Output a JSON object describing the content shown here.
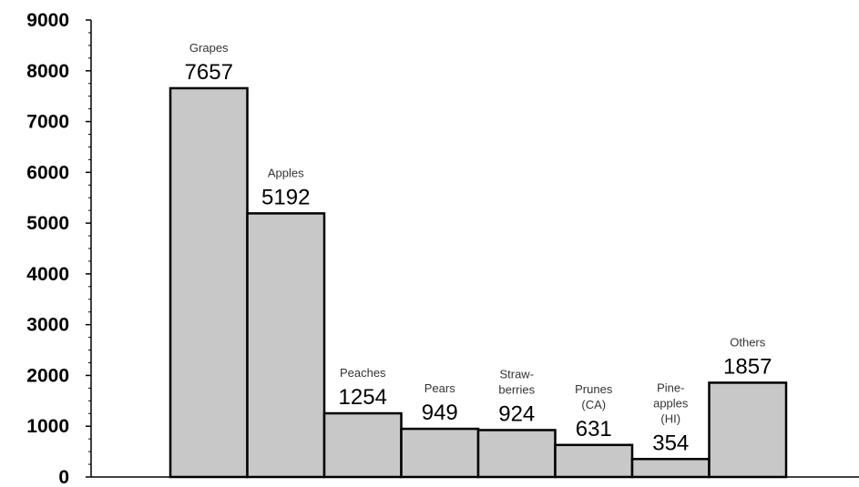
{
  "chart_data": {
    "type": "bar",
    "title": "",
    "xlabel": "",
    "ylabel": "",
    "ylim": [
      0,
      9000
    ],
    "yticks": [
      0,
      1000,
      2000,
      3000,
      4000,
      5000,
      6000,
      7000,
      8000,
      9000
    ],
    "grid": false,
    "legend": "none",
    "bar_color": "#c8c8c8",
    "categories": [
      [
        "Grapes"
      ],
      [
        "Apples"
      ],
      [
        "Peaches"
      ],
      [
        "Pears"
      ],
      [
        "Straw-",
        "berries"
      ],
      [
        "Prunes",
        "(CA)"
      ],
      [
        "Pine-",
        "apples",
        "(HI)"
      ],
      [
        "Others"
      ]
    ],
    "values": [
      7657,
      5192,
      1254,
      949,
      924,
      631,
      354,
      1857
    ]
  }
}
